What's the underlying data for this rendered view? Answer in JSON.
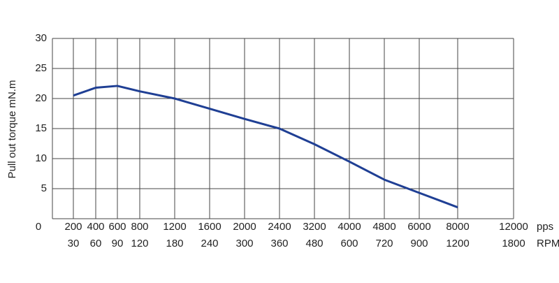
{
  "chart_data": {
    "type": "line",
    "y_label": "Pull out torque mN.m",
    "x_unit": "pps",
    "x2_unit": "RPM",
    "categories": [
      "0",
      "200",
      "400",
      "600",
      "800",
      "1200",
      "1600",
      "2000",
      "2400",
      "3200",
      "4000",
      "4800",
      "6000",
      "8000",
      "12000"
    ],
    "categories2": [
      null,
      "30",
      "60",
      "90",
      "120",
      "180",
      "240",
      "300",
      "360",
      "480",
      "600",
      "720",
      "900",
      "1200",
      "1800"
    ],
    "series": [
      {
        "name": "Pull out torque",
        "color": "#1f3f94",
        "values": [
          null,
          20.5,
          21.8,
          22.1,
          21.2,
          20,
          18.3,
          16.6,
          15,
          12.4,
          9.5,
          6.5,
          4.3,
          1.9,
          null
        ]
      }
    ],
    "ylim": [
      0,
      30
    ],
    "yticks": [
      5,
      10,
      15,
      20,
      25,
      30
    ],
    "grid": true
  }
}
